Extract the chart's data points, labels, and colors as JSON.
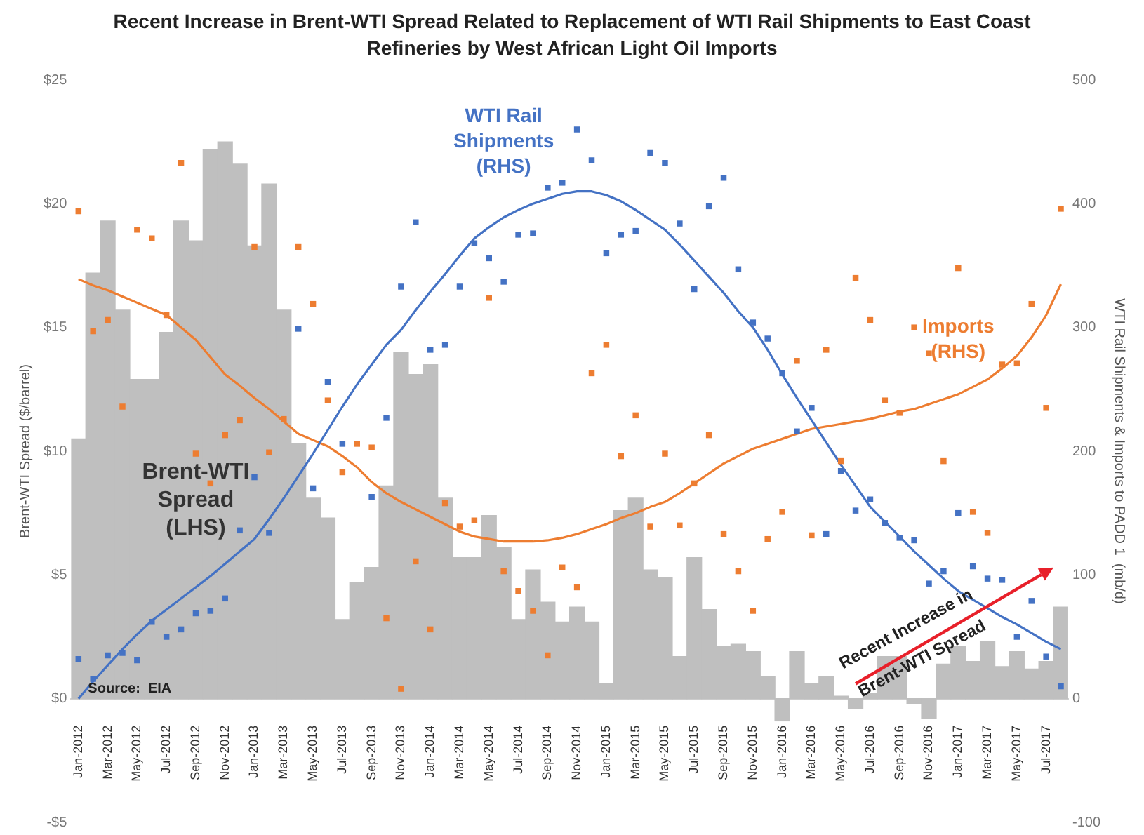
{
  "chart_data": {
    "type": "bar",
    "title": "Recent Increase in Brent-WTI Spread Related to Replacement of WTI Rail Shipments to East Coast Refineries by West African Light Oil Imports",
    "ylabel": "Brent-WTI Spread ($/barrel)",
    "y2label": "WTI Rail Shipments & Imports to PADD 1  (mb/d)",
    "categories": [
      "Jan-2012",
      null,
      "Mar-2012",
      null,
      "May-2012",
      null,
      "Jul-2012",
      null,
      "Sep-2012",
      null,
      "Nov-2012",
      null,
      "Jan-2013",
      null,
      "Mar-2013",
      null,
      "May-2013",
      null,
      "Jul-2013",
      null,
      "Sep-2013",
      null,
      "Nov-2013",
      null,
      "Jan-2014",
      null,
      "Mar-2014",
      null,
      "May-2014",
      null,
      "Jul-2014",
      null,
      "Sep-2014",
      null,
      "Nov-2014",
      null,
      "Jan-2015",
      null,
      "Mar-2015",
      null,
      "May-2015",
      null,
      "Jul-2015",
      null,
      "Sep-2015",
      null,
      "Nov-2015",
      null,
      "Jan-2016",
      null,
      "Mar-2016",
      null,
      "May-2016",
      null,
      "Jul-2016",
      null,
      "Sep-2016",
      null,
      "Nov-2016",
      null,
      "Jan-2017",
      null,
      "Mar-2017",
      null,
      "May-2017",
      null,
      "Jul-2017",
      null
    ],
    "series": [
      {
        "name": "Brent-WTI Spread (LHS)",
        "color": "#bfbfbf",
        "values": [
          10.5,
          17.2,
          19.3,
          15.7,
          12.9,
          12.9,
          14.8,
          19.3,
          18.5,
          22.2,
          22.5,
          21.6,
          18.3,
          20.8,
          15.7,
          10.3,
          8.1,
          7.3,
          3.2,
          4.7,
          5.3,
          8.6,
          14.0,
          13.1,
          13.5,
          8.1,
          5.7,
          5.7,
          7.4,
          6.1,
          3.2,
          5.2,
          3.9,
          3.1,
          3.7,
          3.1,
          0.6,
          7.6,
          8.1,
          5.2,
          4.9,
          1.7,
          5.7,
          3.6,
          2.1,
          2.2,
          1.9,
          0.9,
          -0.9,
          1.9,
          0.6,
          0.9,
          0.1,
          -0.4,
          0.2,
          1.7,
          1.7,
          -0.2,
          -0.8,
          1.4,
          2.1,
          1.5,
          2.3,
          1.3,
          1.9,
          1.2,
          1.5,
          3.7
        ]
      },
      {
        "name": "WTI Rail Shipments (RHS)",
        "type": "scatter",
        "marker": "square",
        "axis": "y2",
        "color": "#4472c4",
        "values": [
          32,
          16,
          35,
          37,
          31,
          62,
          50,
          56,
          69,
          71,
          81,
          136,
          179,
          134,
          null,
          299,
          170,
          256,
          206,
          null,
          163,
          227,
          333,
          385,
          282,
          286,
          333,
          368,
          356,
          337,
          375,
          376,
          413,
          417,
          460,
          435,
          360,
          375,
          378,
          441,
          433,
          384,
          331,
          398,
          421,
          347,
          304,
          291,
          263,
          216,
          235,
          133,
          184,
          152,
          161,
          142,
          130,
          128,
          93,
          103,
          150,
          107,
          97,
          96,
          50,
          79,
          34,
          10
        ]
      },
      {
        "name": "Imports (RHS)",
        "type": "scatter",
        "marker": "square",
        "axis": "y2",
        "color": "#ed7d31",
        "values": [
          394,
          297,
          306,
          236,
          379,
          372,
          310,
          433,
          198,
          174,
          213,
          225,
          365,
          199,
          226,
          365,
          319,
          241,
          183,
          206,
          203,
          65,
          8,
          111,
          56,
          158,
          139,
          144,
          324,
          103,
          87,
          71,
          35,
          106,
          90,
          263,
          286,
          196,
          229,
          139,
          198,
          140,
          174,
          213,
          133,
          103,
          71,
          129,
          151,
          273,
          132,
          282,
          192,
          340,
          306,
          241,
          231,
          300,
          279,
          192,
          348,
          151,
          134,
          270,
          271,
          319,
          235,
          396
        ]
      },
      {
        "type": "line",
        "axis": "y2",
        "color": "#4472c4",
        "values": [
          0,
          14,
          27,
          40,
          52,
          63,
          72,
          81,
          90,
          99,
          109,
          119,
          129,
          145,
          162,
          180,
          198,
          217,
          236,
          254,
          270,
          286,
          298,
          314,
          329,
          343,
          358,
          372,
          381,
          389,
          395,
          400,
          404,
          408,
          410,
          410,
          407,
          402,
          395,
          387,
          379,
          367,
          354,
          341,
          328,
          313,
          300,
          282,
          262,
          243,
          225,
          207,
          189,
          172,
          155,
          143,
          131,
          119,
          108,
          97,
          87,
          80,
          73,
          66,
          60,
          53,
          46,
          40
        ]
      },
      {
        "type": "line",
        "axis": "y2",
        "color": "#ed7d31",
        "values": [
          339,
          334,
          330,
          325,
          320,
          315,
          310,
          300,
          290,
          276,
          262,
          253,
          243,
          234,
          224,
          214,
          209,
          204,
          196,
          187,
          175,
          166,
          159,
          153,
          147,
          141,
          135,
          131,
          129,
          127,
          127,
          127,
          128,
          130,
          133,
          137,
          141,
          146,
          150,
          155,
          159,
          166,
          174,
          182,
          190,
          196,
          202,
          206,
          210,
          214,
          218,
          220,
          222,
          224,
          226,
          229,
          232,
          234,
          238,
          242,
          246,
          252,
          258,
          267,
          277,
          292,
          310,
          335
        ]
      }
    ],
    "ylim": [
      -5,
      25
    ],
    "yticks": [
      {
        "value": -5,
        "label": "-$5"
      },
      {
        "value": 0,
        "label": "$0"
      },
      {
        "value": 5,
        "label": "$5"
      },
      {
        "value": 10,
        "label": "$10"
      },
      {
        "value": 15,
        "label": "$15"
      },
      {
        "value": 20,
        "label": "$20"
      },
      {
        "value": 25,
        "label": "$25"
      }
    ],
    "y2lim": [
      -100,
      500
    ],
    "y2ticks": [
      -100,
      0,
      100,
      200,
      300,
      400,
      500
    ],
    "annotations": [
      "Recent Increase in Brent-WTI Spread",
      "Source:  EIA"
    ]
  }
}
